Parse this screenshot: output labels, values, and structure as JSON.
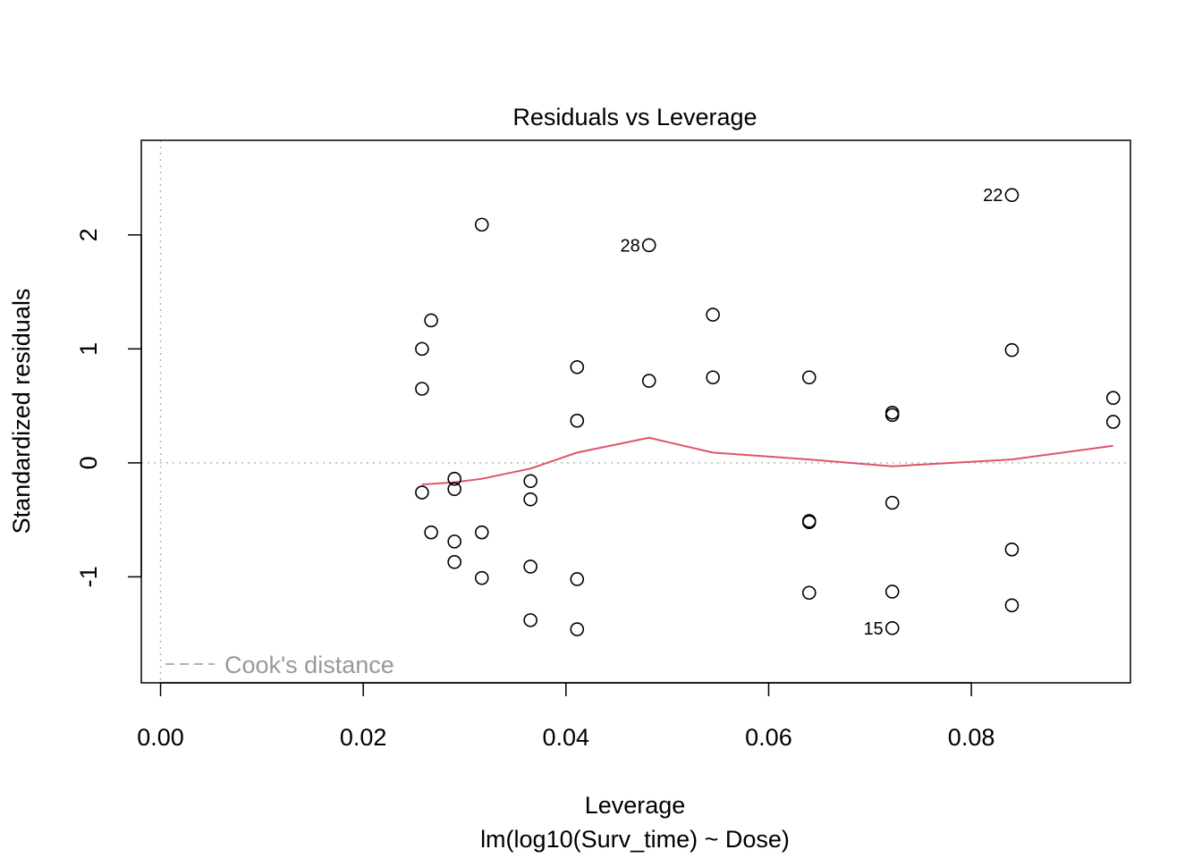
{
  "chart_data": {
    "type": "scatter",
    "title": "Residuals vs Leverage",
    "xlabel": "Leverage",
    "subtitle": "lm(log10(Surv_time) ~ Dose)",
    "ylabel": "Standardized residuals",
    "xlim": [
      -0.0019,
      0.0957
    ],
    "ylim": [
      -1.93,
      2.83
    ],
    "x_ticks": [
      0.0,
      0.02,
      0.04,
      0.06,
      0.08
    ],
    "x_tick_labels": [
      "0.00",
      "0.02",
      "0.04",
      "0.06",
      "0.08"
    ],
    "y_ticks": [
      -1,
      0,
      1,
      2
    ],
    "y_tick_labels": [
      "-1",
      "0",
      "1",
      "2"
    ],
    "grid": false,
    "reference_lines": {
      "x": 0,
      "y": 0,
      "style": "dotted",
      "color": "#b3b3b3"
    },
    "points": [
      {
        "x": 0.0258,
        "y": 1.0
      },
      {
        "x": 0.0258,
        "y": 0.65
      },
      {
        "x": 0.0258,
        "y": -0.26
      },
      {
        "x": 0.0267,
        "y": 1.25
      },
      {
        "x": 0.0267,
        "y": -0.61
      },
      {
        "x": 0.029,
        "y": -0.14
      },
      {
        "x": 0.029,
        "y": -0.23
      },
      {
        "x": 0.029,
        "y": -0.69
      },
      {
        "x": 0.029,
        "y": -0.87
      },
      {
        "x": 0.0317,
        "y": 2.09
      },
      {
        "x": 0.0317,
        "y": -0.61
      },
      {
        "x": 0.0317,
        "y": -1.01
      },
      {
        "x": 0.0365,
        "y": -0.16
      },
      {
        "x": 0.0365,
        "y": -0.32
      },
      {
        "x": 0.0365,
        "y": -0.91
      },
      {
        "x": 0.0365,
        "y": -1.38
      },
      {
        "x": 0.0411,
        "y": 0.84
      },
      {
        "x": 0.0411,
        "y": 0.37
      },
      {
        "x": 0.0411,
        "y": -1.02
      },
      {
        "x": 0.0411,
        "y": -1.46
      },
      {
        "x": 0.0482,
        "y": 1.91,
        "label": "28"
      },
      {
        "x": 0.0482,
        "y": 0.72
      },
      {
        "x": 0.0545,
        "y": 1.3
      },
      {
        "x": 0.0545,
        "y": 0.75
      },
      {
        "x": 0.064,
        "y": 0.75
      },
      {
        "x": 0.064,
        "y": -0.51
      },
      {
        "x": 0.064,
        "y": -0.52
      },
      {
        "x": 0.064,
        "y": -1.14
      },
      {
        "x": 0.0722,
        "y": 0.44
      },
      {
        "x": 0.0722,
        "y": 0.42
      },
      {
        "x": 0.0722,
        "y": -0.35
      },
      {
        "x": 0.0722,
        "y": -1.13
      },
      {
        "x": 0.0722,
        "y": -1.45,
        "label": "15"
      },
      {
        "x": 0.084,
        "y": 2.35,
        "label": "22"
      },
      {
        "x": 0.084,
        "y": 0.99
      },
      {
        "x": 0.084,
        "y": -0.76
      },
      {
        "x": 0.084,
        "y": -1.25
      },
      {
        "x": 0.094,
        "y": 0.57
      },
      {
        "x": 0.094,
        "y": 0.36
      }
    ],
    "smoother": {
      "color": "#DF536B",
      "x": [
        0.0258,
        0.029,
        0.0317,
        0.0365,
        0.0411,
        0.0482,
        0.0545,
        0.064,
        0.0722,
        0.084,
        0.094
      ],
      "y": [
        -0.19,
        -0.17,
        -0.14,
        -0.05,
        0.09,
        0.22,
        0.09,
        0.03,
        -0.03,
        0.03,
        0.15
      ]
    },
    "legend": {
      "position": "bottom-left",
      "entries": [
        {
          "label": "Cook's distance",
          "style": "dashed",
          "color": "#999999"
        }
      ]
    }
  }
}
